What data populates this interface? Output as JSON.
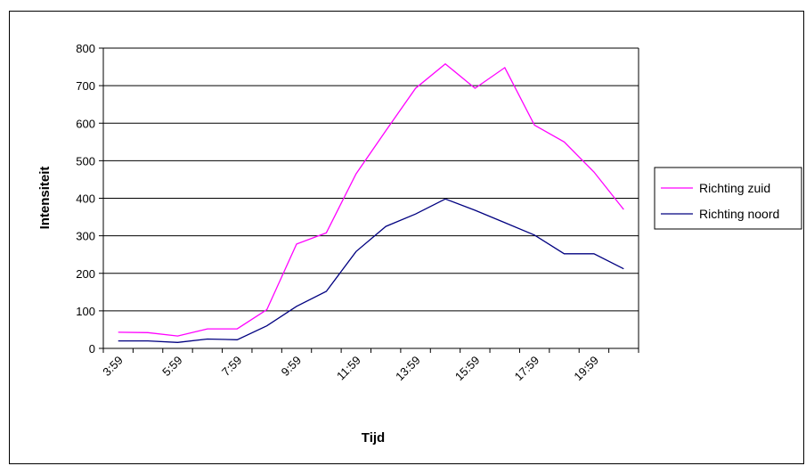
{
  "chart_data": {
    "type": "line",
    "xlabel": "Tijd",
    "ylabel": "Intensiteit",
    "ylim": [
      0,
      800
    ],
    "yticks": [
      0,
      100,
      200,
      300,
      400,
      500,
      600,
      700,
      800
    ],
    "x_tick_labels": [
      "3:59",
      "5:59",
      "7:59",
      "9:59",
      "11:59",
      "13:59",
      "15:59",
      "17:59",
      "19:59"
    ],
    "grid": "horizontal",
    "legend_position": "right",
    "series": [
      {
        "name": "Richting zuid",
        "color": "#ff00ff",
        "values": [
          43,
          42,
          33,
          52,
          52,
          103,
          278,
          308,
          465,
          580,
          693,
          758,
          693,
          748,
          595,
          550,
          470,
          370
        ]
      },
      {
        "name": "Richting noord",
        "color": "#000080",
        "values": [
          20,
          20,
          16,
          25,
          23,
          60,
          112,
          152,
          258,
          325,
          358,
          398,
          368,
          335,
          302,
          252,
          252,
          212
        ]
      }
    ]
  }
}
